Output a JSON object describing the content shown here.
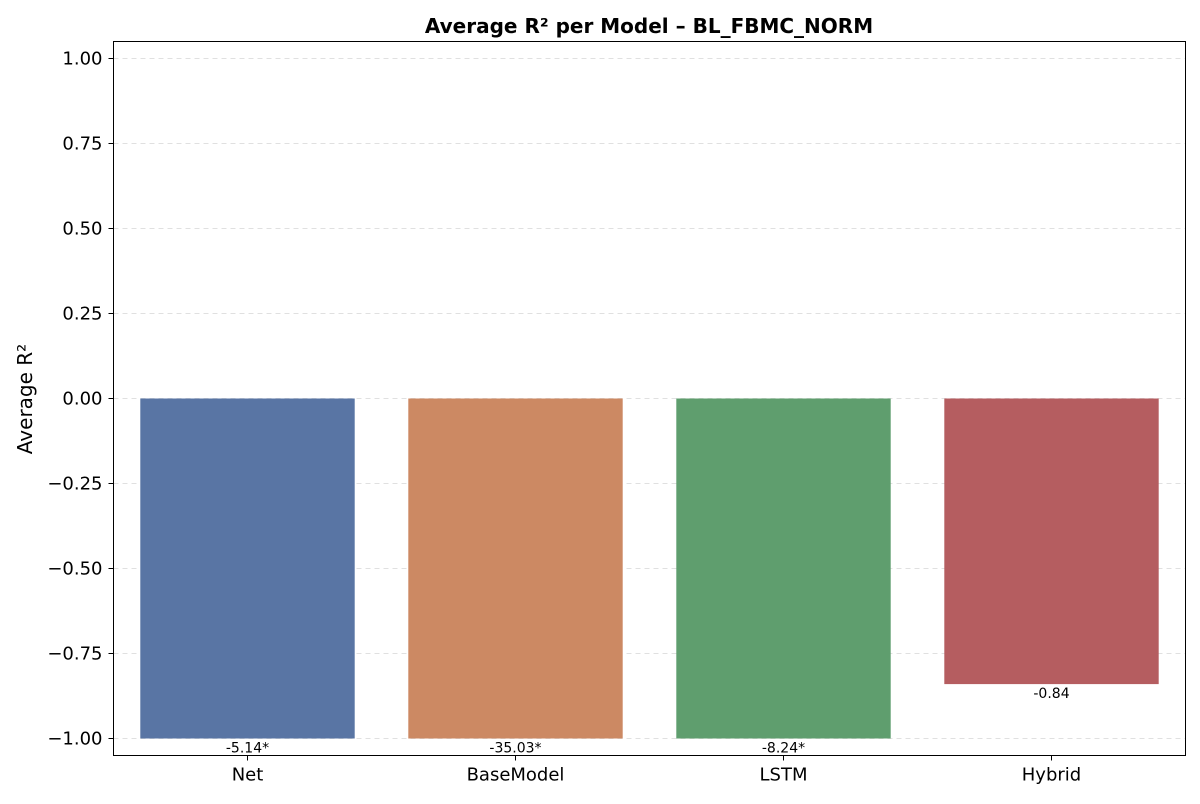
{
  "chart_data": {
    "type": "bar",
    "title": "Average R² per Model – BL_FBMC_NORM",
    "xlabel": "",
    "ylabel": "Average R²",
    "ylim": [
      -1.05,
      1.05
    ],
    "yticks": [
      1.0,
      0.75,
      0.5,
      0.25,
      0.0,
      -0.25,
      -0.5,
      -0.75,
      -1.0
    ],
    "ytick_labels": [
      "1.00",
      "0.75",
      "0.50",
      "0.25",
      "0.00",
      "−0.25",
      "−0.50",
      "−0.75",
      "−1.00"
    ],
    "grid": true,
    "categories": [
      "Net",
      "BaseModel",
      "LSTM",
      "Hybrid"
    ],
    "values": [
      -5.14,
      -35.03,
      -8.24,
      -0.84
    ],
    "display_values": [
      -1.0,
      -1.0,
      -1.0,
      -0.84
    ],
    "data_labels": [
      "-5.14*",
      "-35.03*",
      "-8.24*",
      "-0.84"
    ],
    "colors": [
      "#5975a4",
      "#cc8963",
      "#5f9e6e",
      "#b55d60"
    ]
  }
}
